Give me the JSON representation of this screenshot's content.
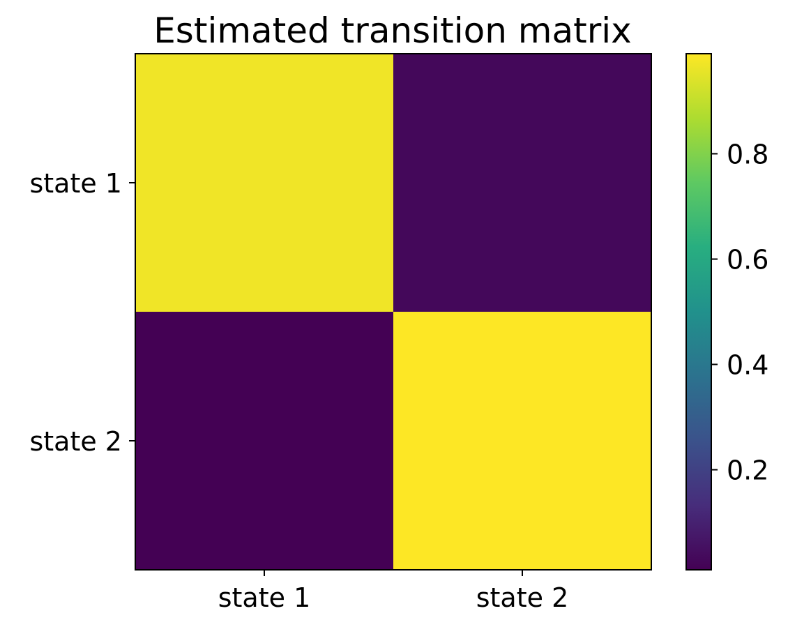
{
  "chart_data": {
    "type": "heatmap",
    "title": "Estimated transition matrix",
    "x_categories": [
      "state 1",
      "state 2"
    ],
    "y_categories": [
      "state 1",
      "state 2"
    ],
    "values": [
      [
        0.97,
        0.03
      ],
      [
        0.01,
        0.99
      ]
    ],
    "colormap": "viridis",
    "colorbar": {
      "range": [
        0.01,
        0.99
      ],
      "ticks": [
        0.2,
        0.4,
        0.6,
        0.8
      ],
      "tick_labels": [
        "0.2",
        "0.4",
        "0.6",
        "0.8"
      ],
      "placement": "right"
    },
    "grid": false
  }
}
